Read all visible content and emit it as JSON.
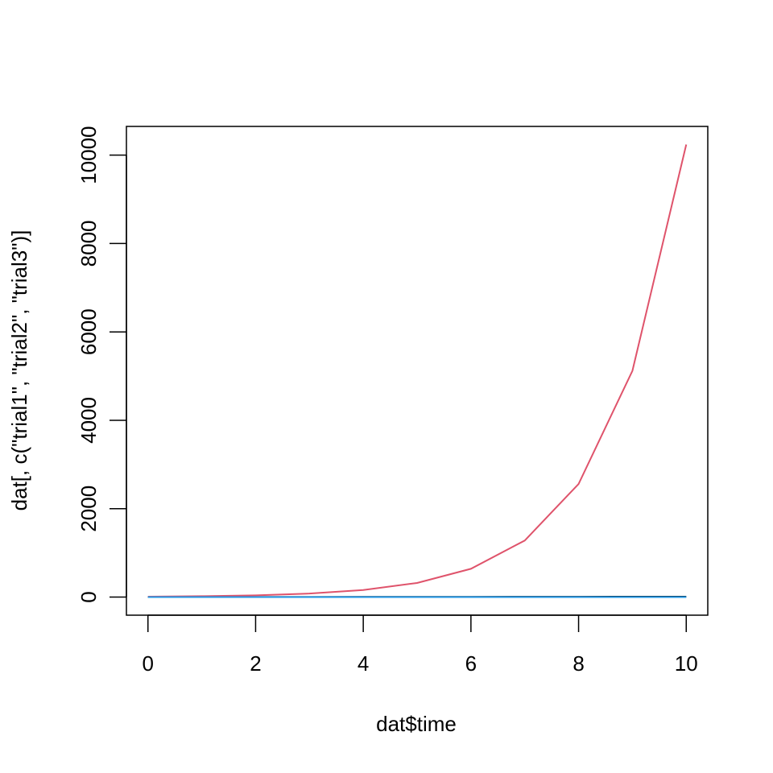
{
  "chart_data": {
    "type": "line",
    "xlabel": "dat$time",
    "ylabel": "dat[, c(\"trial1\", \"trial2\", \"trial3\")]",
    "x": [
      0,
      1,
      2,
      3,
      4,
      5,
      6,
      7,
      8,
      9,
      10
    ],
    "series": [
      {
        "color": "#000000",
        "values": [
          0,
          1,
          2,
          3,
          4,
          5,
          6,
          7,
          8,
          9,
          10
        ]
      },
      {
        "color": "#DF536B",
        "values": [
          10,
          20,
          40,
          80,
          160,
          320,
          640,
          1280,
          2560,
          5120,
          10240
        ]
      },
      {
        "color": "#2297E6",
        "values": [
          0,
          0,
          0,
          0,
          0,
          0,
          0,
          0,
          0,
          0,
          0
        ]
      }
    ],
    "xlim": [
      -0.4,
      10.4
    ],
    "xticks": [
      0,
      2,
      4,
      6,
      8,
      10
    ],
    "ylim": [
      -409.6,
      10649.6
    ],
    "yticks": [
      0,
      2000,
      4000,
      6000,
      8000,
      10000
    ]
  }
}
